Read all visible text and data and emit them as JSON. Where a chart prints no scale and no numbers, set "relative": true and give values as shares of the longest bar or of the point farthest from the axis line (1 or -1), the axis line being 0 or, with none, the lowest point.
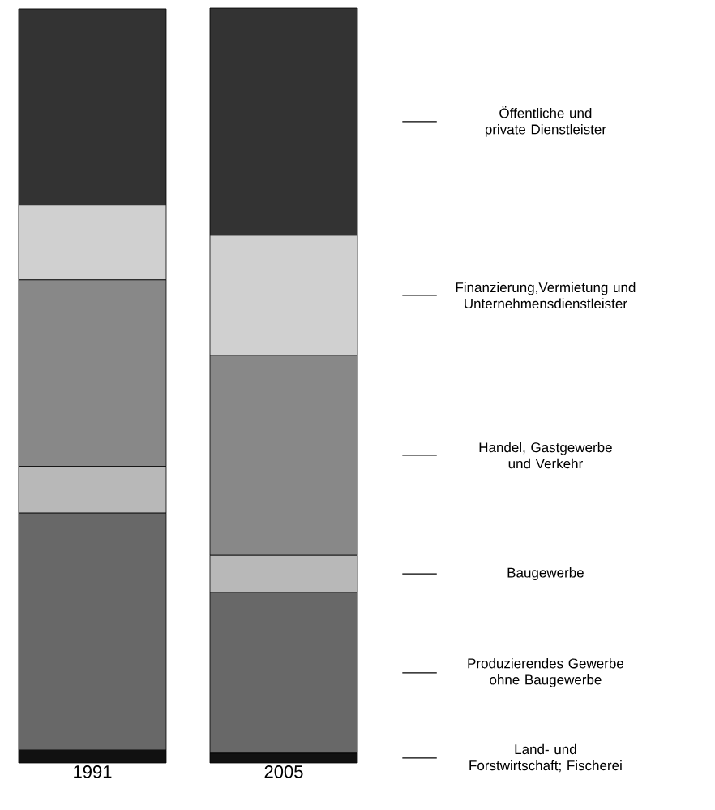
{
  "chart_data": {
    "type": "bar",
    "stacked": true,
    "relative": true,
    "legend": "right",
    "categories": [
      "1991",
      "2005"
    ],
    "series": [
      {
        "name": "Land- und Forstwirtschaft; Fischerei",
        "color": "#111111",
        "values": [
          0.017,
          0.013
        ]
      },
      {
        "name": "Produzierendes Gewerbe ohne Baugewerbe",
        "color": "#686868",
        "values": [
          0.314,
          0.213
        ]
      },
      {
        "name": "Baugewerbe",
        "color": "#b8b8b8",
        "values": [
          0.062,
          0.049
        ]
      },
      {
        "name": "Handel, Gastgewerbe und Verkehr",
        "color": "#888888",
        "values": [
          0.247,
          0.265
        ]
      },
      {
        "name": "Finanzierung,Vermietung und Unternehmensdienstleister",
        "color": "#d0d0d0",
        "values": [
          0.099,
          0.159
        ]
      },
      {
        "name": "Öffentliche und private Dienstleister",
        "color": "#333333",
        "values": [
          0.26,
          0.301
        ]
      }
    ]
  }
}
